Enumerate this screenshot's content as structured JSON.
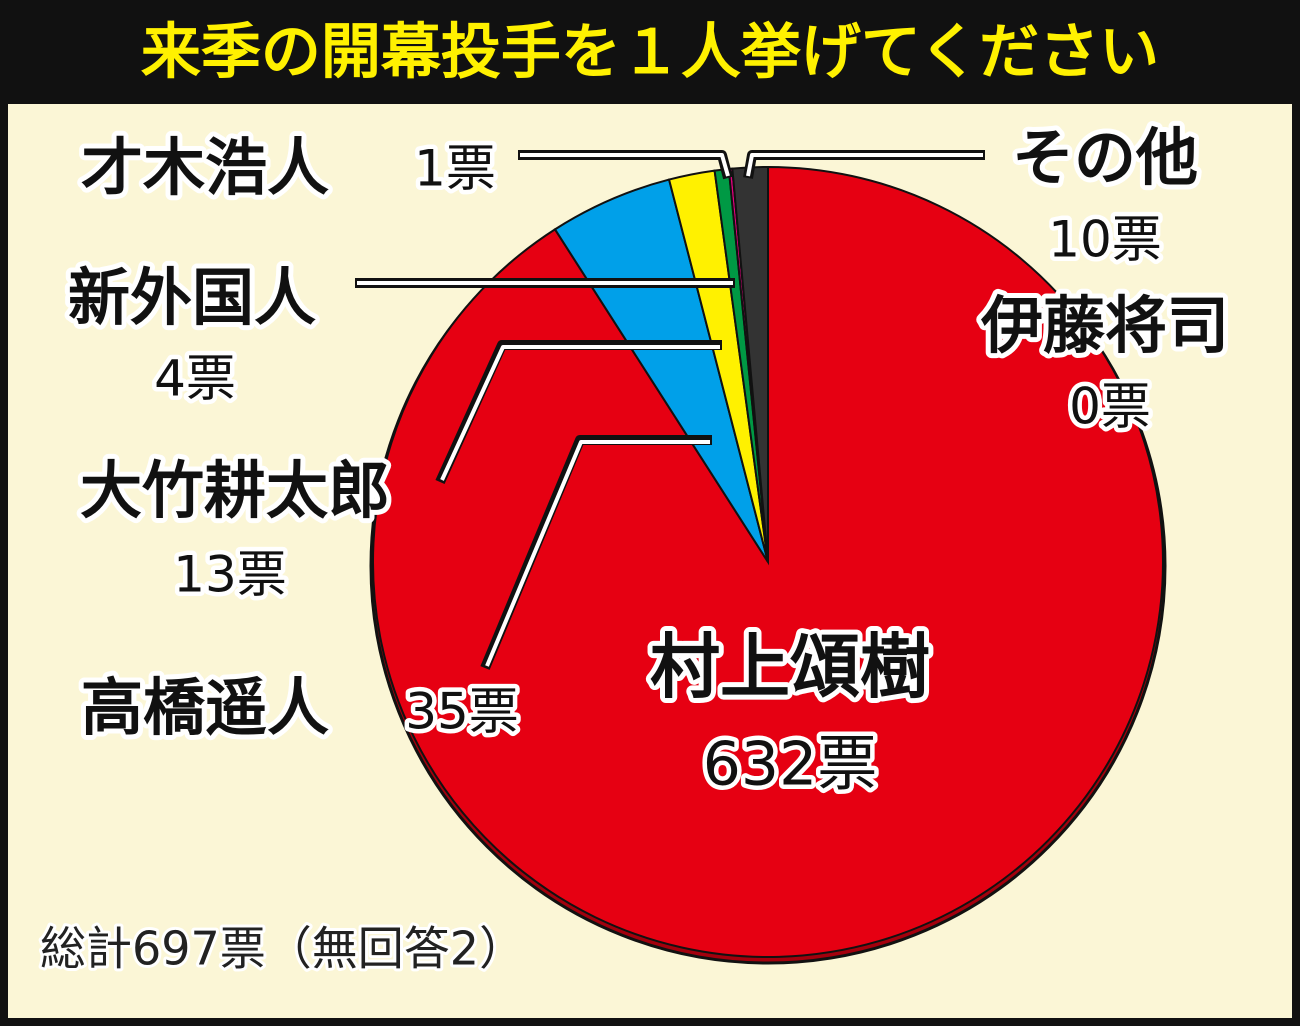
{
  "chart_data": {
    "type": "pie",
    "title": "来季の開幕投手を１人挙げてください",
    "categories": [
      "村上頌樹",
      "高橋遥人",
      "大竹耕太郎",
      "新外国人",
      "才木浩人",
      "伊藤将司",
      "その他"
    ],
    "values": [
      632,
      35,
      13,
      4,
      1,
      0,
      10
    ],
    "value_labels": [
      "632票",
      "35票",
      "13票",
      "4票",
      "1票",
      "0票",
      "10票"
    ],
    "colors": [
      "#e60012",
      "#00a0e9",
      "#fff100",
      "#009944",
      "#e4007f",
      "#888888",
      "#333333"
    ],
    "footnote": "総計697票（無回答2）"
  }
}
